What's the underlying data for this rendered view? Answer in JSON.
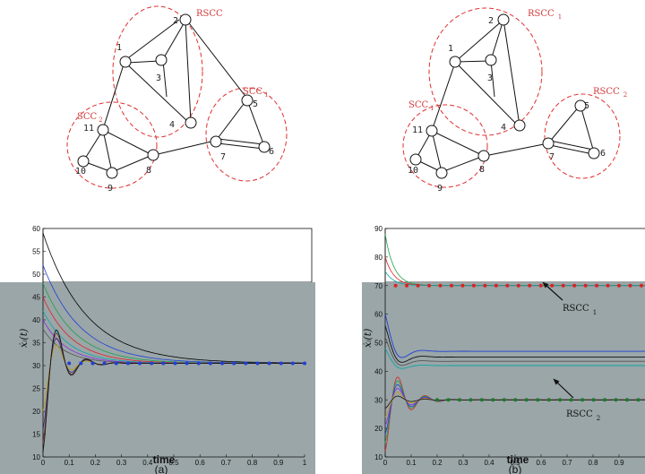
{
  "graphs": [
    {
      "id": "a",
      "nodes": [
        "1",
        "2",
        "3",
        "4",
        "5",
        "6",
        "7",
        "8",
        "9",
        "10",
        "11"
      ],
      "regions": [
        {
          "label": "RSCC"
        },
        {
          "label": "SCC",
          "sub": "1"
        },
        {
          "label": "SCC",
          "sub": "2"
        }
      ]
    },
    {
      "id": "b",
      "nodes": [
        "1",
        "2",
        "3",
        "4",
        "5",
        "6",
        "7",
        "8",
        "9",
        "10",
        "11"
      ],
      "regions": [
        {
          "label": "RSCC",
          "sub": "1"
        },
        {
          "label": "SCC",
          "sub": "1"
        },
        {
          "label": "RSCC",
          "sub": "2"
        }
      ]
    }
  ],
  "chart_data": [
    {
      "type": "line",
      "panel_label": "(a)",
      "xlabel": "time",
      "ylabel": "ẋᵢ(t)",
      "xlim": [
        0,
        1
      ],
      "ylim": [
        10,
        60
      ],
      "xticks": [
        "0",
        "0.1",
        "0.2",
        "0.3",
        "0.4",
        "0.5",
        "0.6",
        "0.7",
        "0.8",
        "0.9",
        "1"
      ],
      "yticks": [
        "10",
        "15",
        "20",
        "25",
        "30",
        "35",
        "40",
        "45",
        "50",
        "55",
        "60"
      ],
      "consensus_value": 30.5,
      "marker_color": "#1f3fd6"
    },
    {
      "type": "line",
      "panel_label": "(b)",
      "xlabel": "time",
      "ylabel": "ẋᵢ(t)",
      "xlim": [
        0,
        1
      ],
      "ylim": [
        10,
        90
      ],
      "xticks": [
        "0",
        "0.1",
        "0.2",
        "0.3",
        "0.4",
        "0.5",
        "0.6",
        "0.7",
        "0.8",
        "0.9"
      ],
      "yticks": [
        "10",
        "20",
        "30",
        "40",
        "50",
        "60",
        "70",
        "80",
        "90"
      ],
      "annotations": [
        {
          "text": "RSCC",
          "sub": "1",
          "value": 70
        },
        {
          "text": "RSCC",
          "sub": "2",
          "value": 30
        }
      ],
      "marker_colors": [
        "#e02020",
        "#1a7a2a"
      ],
      "middle_values": [
        47,
        45,
        43.5,
        42
      ]
    }
  ]
}
